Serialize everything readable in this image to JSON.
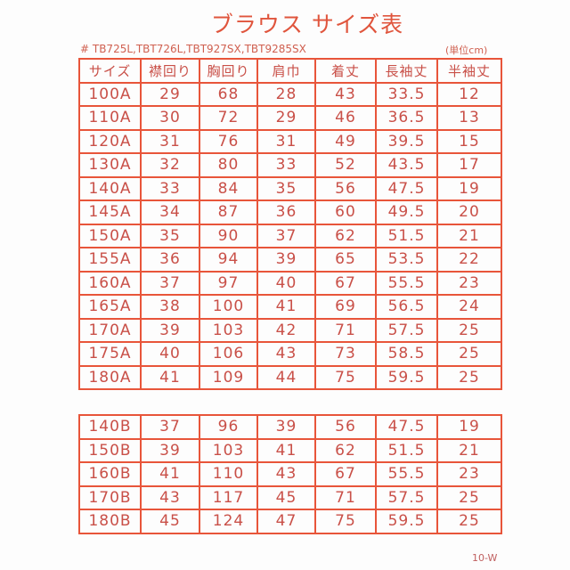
{
  "title": "ブラウス サイズ表",
  "models": "# TB725L,TBT726L,TBT927SX,TBT9285SX",
  "unit": "(単位cm)",
  "headers": [
    "サイズ",
    "襟回り",
    "胸回り",
    "肩巾",
    "着丈",
    "長袖丈",
    "半袖丈"
  ],
  "rows_a": [
    [
      "100A",
      "29",
      "68",
      "28",
      "43",
      "33.5",
      "12"
    ],
    [
      "110A",
      "30",
      "72",
      "29",
      "46",
      "36.5",
      "13"
    ],
    [
      "120A",
      "31",
      "76",
      "31",
      "49",
      "39.5",
      "15"
    ],
    [
      "130A",
      "32",
      "80",
      "33",
      "52",
      "43.5",
      "17"
    ],
    [
      "140A",
      "33",
      "84",
      "35",
      "56",
      "47.5",
      "19"
    ],
    [
      "145A",
      "34",
      "87",
      "36",
      "60",
      "49.5",
      "20"
    ],
    [
      "150A",
      "35",
      "90",
      "37",
      "62",
      "51.5",
      "21"
    ],
    [
      "155A",
      "36",
      "94",
      "39",
      "65",
      "53.5",
      "22"
    ],
    [
      "160A",
      "37",
      "97",
      "40",
      "67",
      "55.5",
      "23"
    ],
    [
      "165A",
      "38",
      "100",
      "41",
      "69",
      "56.5",
      "24"
    ],
    [
      "170A",
      "39",
      "103",
      "42",
      "71",
      "57.5",
      "25"
    ],
    [
      "175A",
      "40",
      "106",
      "43",
      "73",
      "58.5",
      "25"
    ],
    [
      "180A",
      "41",
      "109",
      "44",
      "75",
      "59.5",
      "25"
    ]
  ],
  "rows_b": [
    [
      "140B",
      "37",
      "96",
      "39",
      "56",
      "47.5",
      "19"
    ],
    [
      "150B",
      "39",
      "103",
      "41",
      "62",
      "51.5",
      "21"
    ],
    [
      "160B",
      "41",
      "110",
      "43",
      "67",
      "55.5",
      "23"
    ],
    [
      "170B",
      "43",
      "117",
      "45",
      "71",
      "57.5",
      "25"
    ],
    [
      "180B",
      "45",
      "124",
      "47",
      "75",
      "59.5",
      "25"
    ]
  ],
  "code": "10-W"
}
